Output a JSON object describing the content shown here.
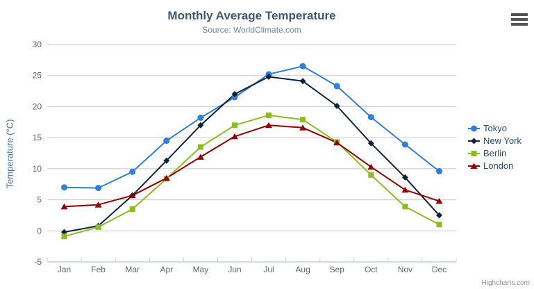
{
  "chart_data": {
    "type": "line",
    "title": "Monthly Average Temperature",
    "subtitle": "Source: WorldClimate.com",
    "categories": [
      "Jan",
      "Feb",
      "Mar",
      "Apr",
      "May",
      "Jun",
      "Jul",
      "Aug",
      "Sep",
      "Oct",
      "Nov",
      "Dec"
    ],
    "series": [
      {
        "name": "Tokyo",
        "color": "#2f7ed8",
        "marker": "circle",
        "values": [
          7.0,
          6.9,
          9.5,
          14.5,
          18.2,
          21.5,
          25.2,
          26.5,
          23.3,
          18.3,
          13.9,
          9.6
        ]
      },
      {
        "name": "New York",
        "color": "#0d233a",
        "marker": "diamond",
        "values": [
          -0.2,
          0.8,
          5.7,
          11.3,
          17.0,
          22.0,
          24.8,
          24.1,
          20.1,
          14.1,
          8.6,
          2.5
        ]
      },
      {
        "name": "Berlin",
        "color": "#8bbc21",
        "marker": "square",
        "values": [
          -0.9,
          0.6,
          3.5,
          8.4,
          13.5,
          17.0,
          18.6,
          17.9,
          14.3,
          9.0,
          3.9,
          1.0
        ]
      },
      {
        "name": "London",
        "color": "#910000",
        "marker": "triangle",
        "values": [
          3.9,
          4.2,
          5.7,
          8.5,
          11.9,
          15.2,
          17.0,
          16.6,
          14.2,
          10.3,
          6.6,
          4.8
        ]
      }
    ],
    "xlabel": "",
    "ylabel": "Temperature (°C)",
    "ylim": [
      -5,
      30
    ],
    "ytick_step": 5,
    "yticks": [
      -5,
      0,
      5,
      10,
      15,
      20,
      25,
      30
    ],
    "grid": true,
    "legend_position": "right",
    "theme": {
      "title_color": "#3e576f",
      "subtitle_color": "#6d869f",
      "axis_label_color": "#666666",
      "y_title_color": "#4572a7",
      "grid_color": "#c8c8c8",
      "axis_line_color": "#c0d0e0",
      "legend_text_color": "#274b6d",
      "credits_color": "#909090"
    }
  },
  "credits": {
    "label": "Highcharts.com"
  }
}
